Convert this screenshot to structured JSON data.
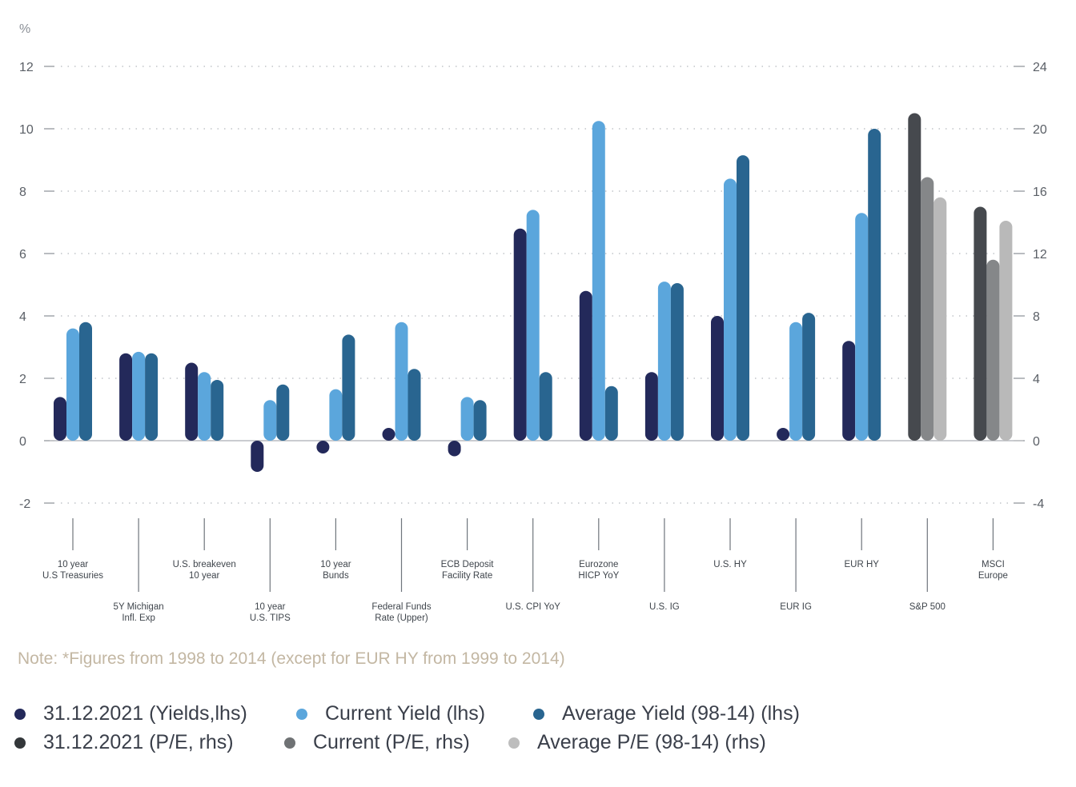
{
  "chart_data": {
    "type": "bar",
    "left_axis": {
      "unit": "%",
      "min": -2,
      "max": 12,
      "ticks": [
        -2,
        0,
        2,
        4,
        6,
        8,
        10,
        12
      ]
    },
    "right_axis": {
      "min": -4,
      "max": 24,
      "ticks": [
        -4,
        0,
        4,
        8,
        12,
        16,
        20,
        24
      ]
    },
    "grid": true,
    "categories": [
      "10 year\nU.S  Treasuries",
      "5Y Michigan\nInfl. Exp",
      "U.S. breakeven\n10 year",
      "10 year\nU.S. TIPS",
      "10 year\nBunds",
      "Federal Funds\nRate (Upper)",
      "ECB Deposit\nFacility Rate",
      "U.S. CPI YoY",
      "Eurozone\nHICP YoY",
      "U.S. IG",
      "U.S. HY",
      "EUR IG",
      "EUR HY",
      "S&P 500",
      "MSCI\nEurope"
    ],
    "series": [
      {
        "name": "31.12.2021 (Yields,lhs)",
        "axis": "left",
        "color": "#23295a",
        "values": [
          1.4,
          2.8,
          2.5,
          -1.0,
          -0.1,
          0.2,
          -0.5,
          6.8,
          4.8,
          2.2,
          4.0,
          0.4,
          3.2,
          null,
          null
        ]
      },
      {
        "name": "Current Yield (lhs)",
        "axis": "left",
        "color": "#5ba6dc",
        "values": [
          3.6,
          2.85,
          2.2,
          1.3,
          1.65,
          3.8,
          1.4,
          7.4,
          10.25,
          5.1,
          8.4,
          3.8,
          7.3,
          null,
          null
        ]
      },
      {
        "name": "Average Yield (98-14) (lhs)",
        "axis": "left",
        "color": "#296590",
        "values": [
          3.8,
          2.8,
          1.95,
          1.8,
          3.4,
          2.3,
          1.3,
          2.2,
          1.75,
          5.05,
          9.15,
          4.1,
          10.0,
          null,
          null
        ]
      },
      {
        "name": "31.12.2021 (P/E, rhs)",
        "axis": "right",
        "color": "#46494e",
        "values": [
          null,
          null,
          null,
          null,
          null,
          null,
          null,
          null,
          null,
          null,
          null,
          null,
          null,
          21.0,
          15.0
        ]
      },
      {
        "name": "Current (P/E, rhs)",
        "axis": "right",
        "color": "#858789",
        "values": [
          null,
          null,
          null,
          null,
          null,
          null,
          null,
          null,
          null,
          null,
          null,
          null,
          null,
          16.9,
          11.6
        ]
      },
      {
        "name": "Average P/E (98-14) (rhs)",
        "axis": "right",
        "color": "#b9b9b9",
        "values": [
          null,
          null,
          null,
          null,
          null,
          null,
          null,
          null,
          null,
          null,
          null,
          null,
          null,
          15.6,
          14.1
        ]
      }
    ],
    "label_rows": [
      "top",
      "bottom",
      "top",
      "bottom",
      "top",
      "bottom",
      "top",
      "bottom",
      "top",
      "bottom",
      "top",
      "bottom",
      "top",
      "bottom",
      "top"
    ],
    "legend_position": "bottom"
  },
  "note": "Note: *Figures from 1998 to 2014 (except for EUR HY from 1999 to 2014)",
  "legend": {
    "items": [
      {
        "label": "31.12.2021 (Yields,lhs)",
        "color": "#23295a"
      },
      {
        "label": "Current Yield (lhs)",
        "color": "#5ba6dc"
      },
      {
        "label": "Average Yield (98-14) (lhs)",
        "color": "#296590"
      },
      {
        "label": "31.12.2021 (P/E, rhs)",
        "color": "#33373a"
      },
      {
        "label": "Current (P/E, rhs)",
        "color": "#6f7274"
      },
      {
        "label": "Average P/E (98-14) (rhs)",
        "color": "#bdbdbd"
      }
    ]
  }
}
